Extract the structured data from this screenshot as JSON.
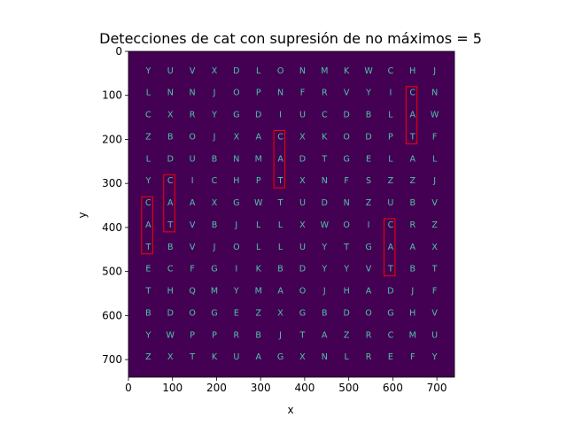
{
  "chart_data": {
    "type": "heatmap",
    "title": "Detecciones de cat con supresión de no máximos = 5",
    "xlabel": "x",
    "ylabel": "y",
    "xlim": [
      0,
      740
    ],
    "ylim": [
      740,
      0
    ],
    "xticks": [
      0,
      100,
      200,
      300,
      400,
      500,
      600,
      700
    ],
    "yticks": [
      0,
      100,
      200,
      300,
      400,
      500,
      600,
      700
    ],
    "background_color": "#440154",
    "letter_color": "#50c4a8",
    "box_color": "#ff0000",
    "cell_size": 50,
    "first_center": 45,
    "grid": [
      [
        "Y",
        "U",
        "V",
        "X",
        "D",
        "L",
        "O",
        "N",
        "M",
        "K",
        "W",
        "C",
        "H",
        "J"
      ],
      [
        "L",
        "N",
        "N",
        "J",
        "O",
        "P",
        "N",
        "F",
        "R",
        "V",
        "Y",
        "I",
        "C",
        "N"
      ],
      [
        "C",
        "X",
        "R",
        "Y",
        "G",
        "D",
        "I",
        "U",
        "C",
        "D",
        "B",
        "L",
        "A",
        "W"
      ],
      [
        "Z",
        "B",
        "O",
        "J",
        "X",
        "A",
        "C",
        "X",
        "K",
        "O",
        "D",
        "P",
        "T",
        "F"
      ],
      [
        "L",
        "D",
        "U",
        "B",
        "N",
        "M",
        "A",
        "D",
        "T",
        "G",
        "E",
        "L",
        "A",
        "L"
      ],
      [
        "Y",
        "C",
        "I",
        "C",
        "H",
        "P",
        "T",
        "X",
        "N",
        "F",
        "S",
        "Z",
        "Z",
        "J"
      ],
      [
        "C",
        "A",
        "A",
        "X",
        "G",
        "W",
        "T",
        "U",
        "D",
        "N",
        "Z",
        "U",
        "B",
        "V"
      ],
      [
        "A",
        "T",
        "V",
        "B",
        "J",
        "L",
        "L",
        "X",
        "W",
        "O",
        "I",
        "C",
        "R",
        "Z"
      ],
      [
        "T",
        "B",
        "V",
        "J",
        "O",
        "L",
        "L",
        "U",
        "Y",
        "T",
        "G",
        "A",
        "A",
        "X"
      ],
      [
        "E",
        "C",
        "F",
        "G",
        "I",
        "K",
        "B",
        "D",
        "Y",
        "Y",
        "V",
        "T",
        "B",
        "T"
      ],
      [
        "T",
        "H",
        "Q",
        "M",
        "Y",
        "M",
        "A",
        "O",
        "J",
        "H",
        "A",
        "D",
        "J",
        "F"
      ],
      [
        "B",
        "D",
        "O",
        "G",
        "E",
        "Z",
        "X",
        "G",
        "B",
        "D",
        "O",
        "G",
        "H",
        "V"
      ],
      [
        "Y",
        "W",
        "P",
        "P",
        "R",
        "B",
        "J",
        "T",
        "A",
        "Z",
        "R",
        "C",
        "M",
        "U"
      ],
      [
        "Z",
        "X",
        "T",
        "K",
        "U",
        "A",
        "G",
        "X",
        "N",
        "L",
        "R",
        "E",
        "F",
        "Y"
      ]
    ],
    "detections": [
      {
        "x0": 630,
        "x1": 655,
        "y0": 80,
        "y1": 210
      },
      {
        "x0": 330,
        "x1": 355,
        "y0": 180,
        "y1": 310
      },
      {
        "x0": 80,
        "x1": 105,
        "y0": 280,
        "y1": 410
      },
      {
        "x0": 30,
        "x1": 55,
        "y0": 330,
        "y1": 460
      },
      {
        "x0": 580,
        "x1": 605,
        "y0": 380,
        "y1": 510
      }
    ]
  }
}
